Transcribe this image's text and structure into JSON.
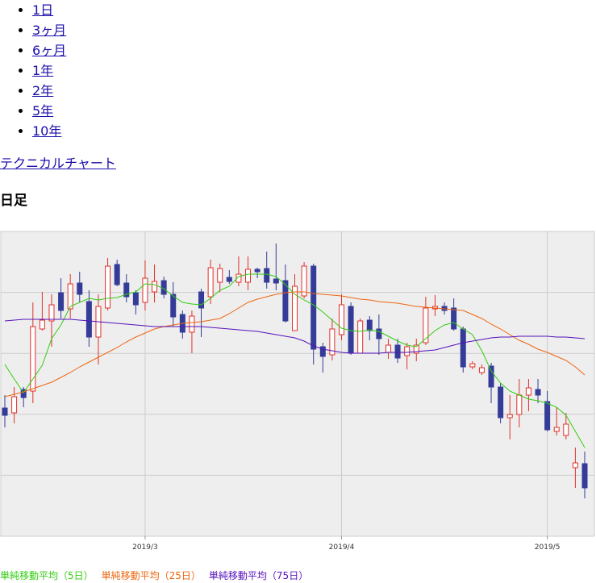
{
  "nav": {
    "items": [
      "1日",
      "3ヶ月",
      "6ヶ月",
      "1年",
      "2年",
      "5年",
      "10年"
    ]
  },
  "link": "テクニカルチャート",
  "heading": "日足",
  "chart_data": {
    "type": "candlestick",
    "categories": [
      null,
      null,
      null,
      null,
      null,
      null,
      null,
      null,
      null,
      null,
      null,
      null,
      null,
      null,
      null,
      "2019/3",
      null,
      null,
      null,
      null,
      null,
      null,
      null,
      null,
      null,
      null,
      null,
      null,
      null,
      null,
      null,
      null,
      null,
      null,
      null,
      null,
      "2019/4",
      null,
      null,
      null,
      null,
      null,
      null,
      null,
      null,
      null,
      null,
      null,
      null,
      null,
      null,
      null,
      null,
      null,
      null,
      null,
      null,
      null,
      "2019/5",
      null,
      null,
      null,
      null
    ],
    "open": [
      159,
      153,
      182,
      180,
      257,
      267,
      302,
      282,
      314,
      291,
      247,
      283,
      337,
      314,
      302,
      290,
      303,
      317,
      300,
      275,
      253,
      303,
      297,
      315,
      321,
      315,
      315,
      331,
      332,
      319,
      317,
      255,
      298,
      335,
      235,
      225,
      250,
      285,
      227,
      268,
      257,
      228,
      237,
      224,
      227,
      240,
      282,
      285,
      283,
      257,
      210,
      203,
      211,
      185,
      147,
      151,
      175,
      182,
      167,
      130,
      125,
      85,
      90
    ],
    "high": [
      175,
      185,
      185,
      290,
      303,
      300,
      320,
      325,
      328,
      305,
      300,
      345,
      343,
      325,
      305,
      342,
      337,
      322,
      315,
      280,
      280,
      307,
      343,
      338,
      330,
      347,
      347,
      333,
      353,
      363,
      337,
      325,
      340,
      338,
      240,
      270,
      300,
      290,
      270,
      273,
      275,
      245,
      245,
      240,
      245,
      297,
      299,
      290,
      295,
      260,
      217,
      213,
      215,
      190,
      175,
      195,
      195,
      195,
      180,
      160,
      153,
      110,
      105
    ],
    "low": [
      135,
      140,
      160,
      165,
      255,
      235,
      270,
      270,
      290,
      235,
      213,
      280,
      310,
      290,
      275,
      280,
      290,
      295,
      260,
      245,
      227,
      247,
      288,
      303,
      313,
      310,
      305,
      320,
      307,
      305,
      265,
      255,
      295,
      213,
      203,
      218,
      243,
      225,
      227,
      243,
      225,
      220,
      215,
      207,
      217,
      237,
      273,
      275,
      255,
      203,
      207,
      200,
      165,
      140,
      120,
      135,
      155,
      165,
      130,
      125,
      120,
      60,
      47
    ],
    "close": [
      150,
      173,
      172,
      260,
      268,
      287,
      280,
      313,
      300,
      247,
      285,
      335,
      312,
      297,
      287,
      320,
      316,
      300,
      272,
      253,
      273,
      283,
      333,
      332,
      316,
      325,
      331,
      328,
      315,
      314,
      267,
      310,
      335,
      232,
      223,
      257,
      287,
      227,
      267,
      255,
      245,
      237,
      221,
      235,
      237,
      283,
      285,
      280,
      257,
      210,
      214,
      209,
      185,
      147,
      151,
      175,
      184,
      175,
      132,
      135,
      139,
      91,
      60
    ],
    "up_color": "#e0302a",
    "down_color": "#343c98",
    "ylim": [
      0,
      378
    ],
    "grid": true,
    "series": [
      {
        "name": "単純移動平均（5日）",
        "color": "#33cc11",
        "values": [
          213,
          195,
          178,
          195,
          212,
          245,
          262,
          285,
          290,
          295,
          293,
          295,
          296,
          300,
          303,
          313,
          312,
          307,
          298,
          290,
          288,
          287,
          295,
          305,
          310,
          322,
          325,
          325,
          325,
          322,
          312,
          300,
          293,
          287,
          278,
          268,
          258,
          255,
          254,
          256,
          254,
          248,
          242,
          237,
          235,
          245,
          255,
          262,
          265,
          257,
          250,
          230,
          205,
          190,
          180,
          175,
          170,
          168,
          165,
          160,
          150,
          130,
          110
        ]
      },
      {
        "name": "単純移動平均（25日）",
        "color": "#ee6611",
        "values": [
          173,
          176,
          179,
          183,
          187,
          191,
          197,
          203,
          210,
          216,
          222,
          228,
          234,
          241,
          247,
          252,
          257,
          260,
          262,
          264,
          265,
          266,
          268,
          270,
          276,
          283,
          290,
          294,
          297,
          300,
          302,
          303,
          303,
          301,
          300,
          299,
          298,
          296,
          294,
          293,
          291,
          290,
          289,
          287,
          285,
          284,
          283,
          282,
          281,
          280,
          275,
          270,
          263,
          257,
          250,
          243,
          238,
          232,
          228,
          223,
          218,
          210,
          200
        ]
      },
      {
        "name": "単純移動平均（75日）",
        "color": "#5511bb",
        "values": [
          267,
          268,
          269,
          269,
          269,
          269,
          269,
          269,
          268,
          267,
          266,
          265,
          264,
          263,
          262,
          261,
          260,
          260,
          260,
          260,
          260,
          260,
          259,
          258,
          257,
          256,
          255,
          254,
          252,
          250,
          248,
          246,
          242,
          236,
          232,
          230,
          228,
          227,
          227,
          227,
          227,
          228,
          228,
          228,
          229,
          230,
          231,
          234,
          237,
          240,
          242,
          244,
          246,
          247,
          247,
          248,
          248,
          248,
          248,
          247,
          247,
          246,
          245
        ]
      }
    ]
  }
}
